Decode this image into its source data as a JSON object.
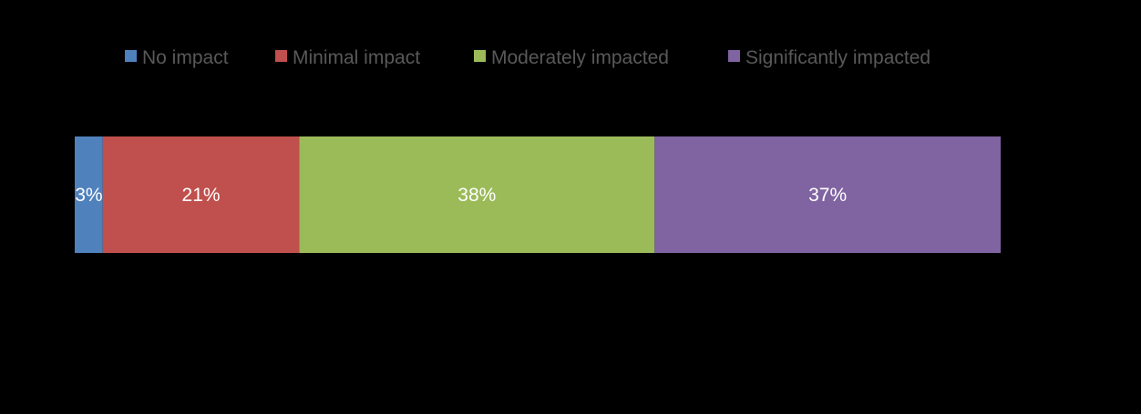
{
  "chart_data": {
    "type": "bar",
    "orientation": "horizontal",
    "stacked": true,
    "categories": [
      ""
    ],
    "series": [
      {
        "name": "No impact",
        "values": [
          3
        ],
        "label": "3%",
        "color": "#4f81bd"
      },
      {
        "name": "Minimal impact",
        "values": [
          21
        ],
        "label": "21%",
        "color": "#c0504d"
      },
      {
        "name": "Moderately impacted",
        "values": [
          38
        ],
        "label": "38%",
        "color": "#9bbb59"
      },
      {
        "name": "Significantly impacted",
        "values": [
          37
        ],
        "label": "37%",
        "color": "#8064a2"
      }
    ],
    "title": "",
    "xlabel": "",
    "ylabel": "",
    "xlim": [
      0,
      100
    ],
    "grid": false,
    "legend_position": "top",
    "background": "#000000",
    "legend_text_color": "#595959",
    "data_label_color": "#ffffff"
  }
}
